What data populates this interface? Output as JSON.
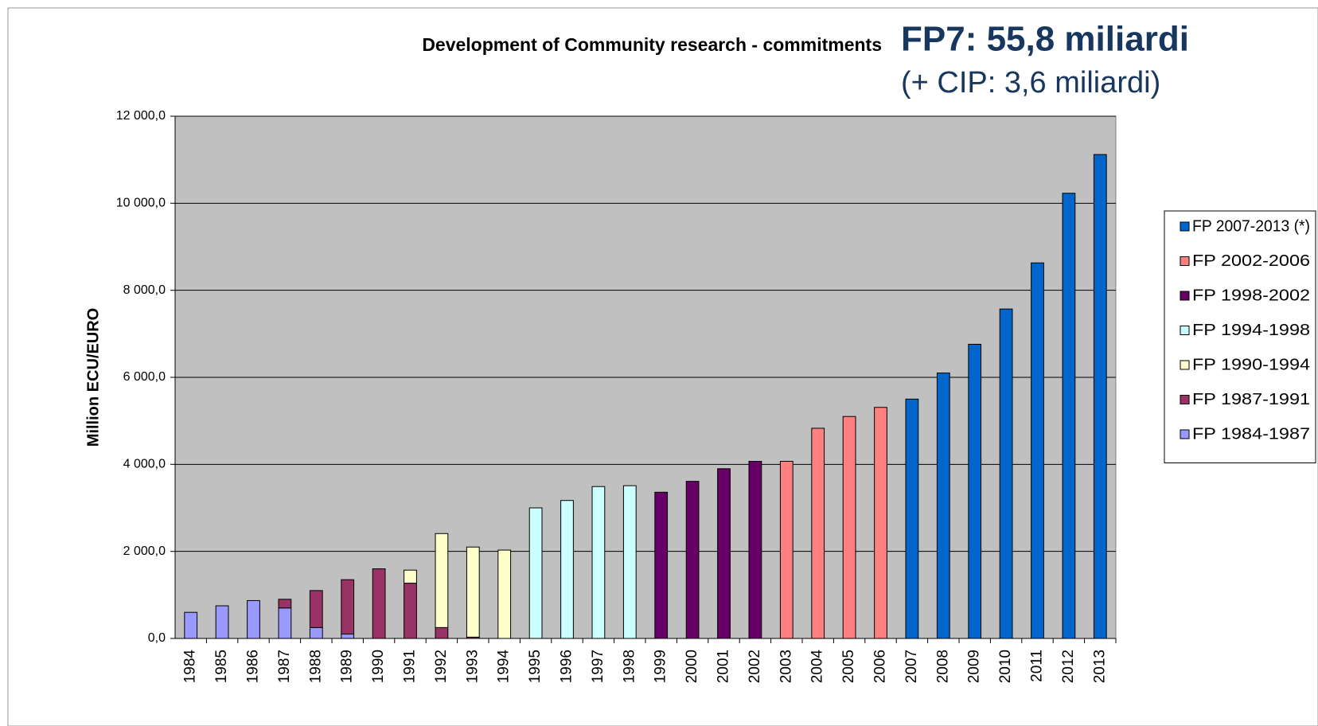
{
  "chart_data": {
    "type": "stacked_bar",
    "title": "Development of Community  research - commitments",
    "headline": "FP7: 55,8 miliardi",
    "subheadline": "(+ CIP: 3,6 miliardi)",
    "y_label": "Million ECU/EURO",
    "categories": [
      "1984",
      "1985",
      "1986",
      "1987",
      "1988",
      "1989",
      "1990",
      "1991",
      "1992",
      "1993",
      "1994",
      "1995",
      "1996",
      "1997",
      "1998",
      "1999",
      "2000",
      "2001",
      "2002",
      "2003",
      "2004",
      "2005",
      "2006",
      "2007",
      "2008",
      "2009",
      "2010",
      "2011",
      "2012",
      "2013"
    ],
    "series": [
      {
        "name": "FP 2007-2013 (*)",
        "color": "#0066cc",
        "values": [
          null,
          null,
          null,
          null,
          null,
          null,
          null,
          null,
          null,
          null,
          null,
          null,
          null,
          null,
          null,
          null,
          null,
          null,
          null,
          null,
          null,
          null,
          null,
          5500,
          6100,
          6760,
          7570,
          8630,
          10230,
          11120
        ]
      },
      {
        "name": "FP 2002-2006",
        "color": "#ff8080",
        "values": [
          null,
          null,
          null,
          null,
          null,
          null,
          null,
          null,
          null,
          null,
          null,
          null,
          null,
          null,
          null,
          null,
          null,
          null,
          null,
          4070,
          4830,
          5100,
          5310,
          null,
          null,
          null,
          null,
          null,
          null,
          null
        ]
      },
      {
        "name": "FP 1998-2002",
        "color": "#660066",
        "values": [
          null,
          null,
          null,
          null,
          null,
          null,
          null,
          null,
          null,
          null,
          null,
          null,
          null,
          null,
          null,
          3360,
          3610,
          3900,
          4070,
          null,
          null,
          null,
          null,
          null,
          null,
          null,
          null,
          null,
          null,
          null
        ]
      },
      {
        "name": "FP 1994-1998",
        "color": "#ccffff",
        "values": [
          null,
          null,
          null,
          null,
          null,
          null,
          null,
          null,
          null,
          null,
          null,
          3000,
          3170,
          3490,
          3510,
          null,
          null,
          null,
          null,
          null,
          null,
          null,
          null,
          null,
          null,
          null,
          null,
          null,
          null,
          null
        ]
      },
      {
        "name": "FP 1990-1994",
        "color": "#ffffcc",
        "values": [
          null,
          null,
          null,
          null,
          null,
          null,
          null,
          300,
          2160,
          2070,
          2030,
          null,
          null,
          null,
          null,
          null,
          null,
          null,
          null,
          null,
          null,
          null,
          null,
          null,
          null,
          null,
          null,
          null,
          null,
          null
        ]
      },
      {
        "name": "FP 1987-1991",
        "color": "#993366",
        "values": [
          null,
          null,
          null,
          200,
          850,
          1250,
          1600,
          1270,
          250,
          30,
          null,
          null,
          null,
          null,
          null,
          null,
          null,
          null,
          null,
          null,
          null,
          null,
          null,
          null,
          null,
          null,
          null,
          null,
          null,
          null
        ]
      },
      {
        "name": "FP 1984-1987",
        "color": "#9999ff",
        "values": [
          600,
          750,
          870,
          700,
          250,
          100,
          null,
          null,
          null,
          null,
          null,
          null,
          null,
          null,
          null,
          null,
          null,
          null,
          null,
          null,
          null,
          null,
          null,
          null,
          null,
          null,
          null,
          null,
          null,
          null
        ]
      }
    ],
    "ylim": [
      0,
      12000
    ],
    "yticks": [
      {
        "value": 0,
        "label": "0,0"
      },
      {
        "value": 2000,
        "label": "2 000,0"
      },
      {
        "value": 4000,
        "label": "4 000,0"
      },
      {
        "value": 6000,
        "label": "6 000,0"
      },
      {
        "value": 8000,
        "label": "8 000,0"
      },
      {
        "value": 10000,
        "label": "10 000,0"
      },
      {
        "value": 12000,
        "label": "12 000,0"
      }
    ],
    "grid": true,
    "plot_background": "#c0c0c0",
    "legend": "right"
  }
}
